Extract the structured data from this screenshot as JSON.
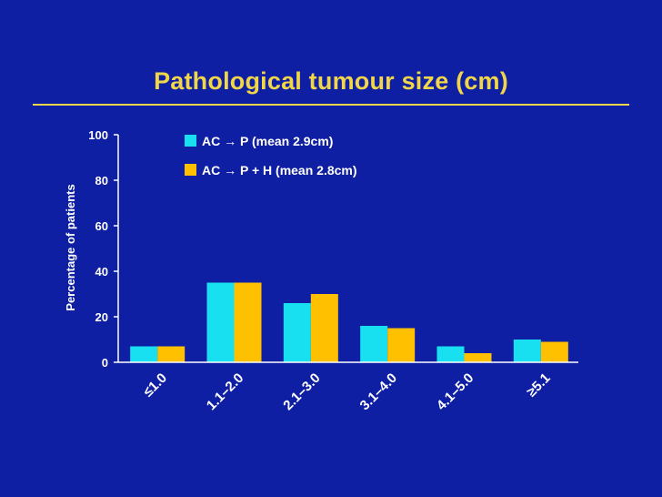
{
  "chart_data": {
    "type": "bar",
    "title": "Pathological tumour size (cm)",
    "xlabel": "",
    "ylabel": "Percentage of patients",
    "ylim": [
      0,
      100
    ],
    "yticks": [
      0,
      20,
      40,
      60,
      80,
      100
    ],
    "categories": [
      "≤1.0",
      "1.1–2.0",
      "2.1–3.0",
      "3.1–4.0",
      "4.1–5.0",
      "≥5.1"
    ],
    "series": [
      {
        "name": "AC → P (mean 2.9cm)",
        "color": "#18e0f0",
        "values": [
          7,
          35,
          26,
          16,
          7,
          10
        ]
      },
      {
        "name": "AC → P + H (mean 2.8cm)",
        "color": "#ffc000",
        "values": [
          7,
          35,
          30,
          15,
          4,
          9
        ]
      }
    ],
    "legend_position": "top",
    "grid": false
  },
  "colors": {
    "background": "#0f1fa3",
    "title": "#f2d64a",
    "axis": "#ffffff"
  }
}
